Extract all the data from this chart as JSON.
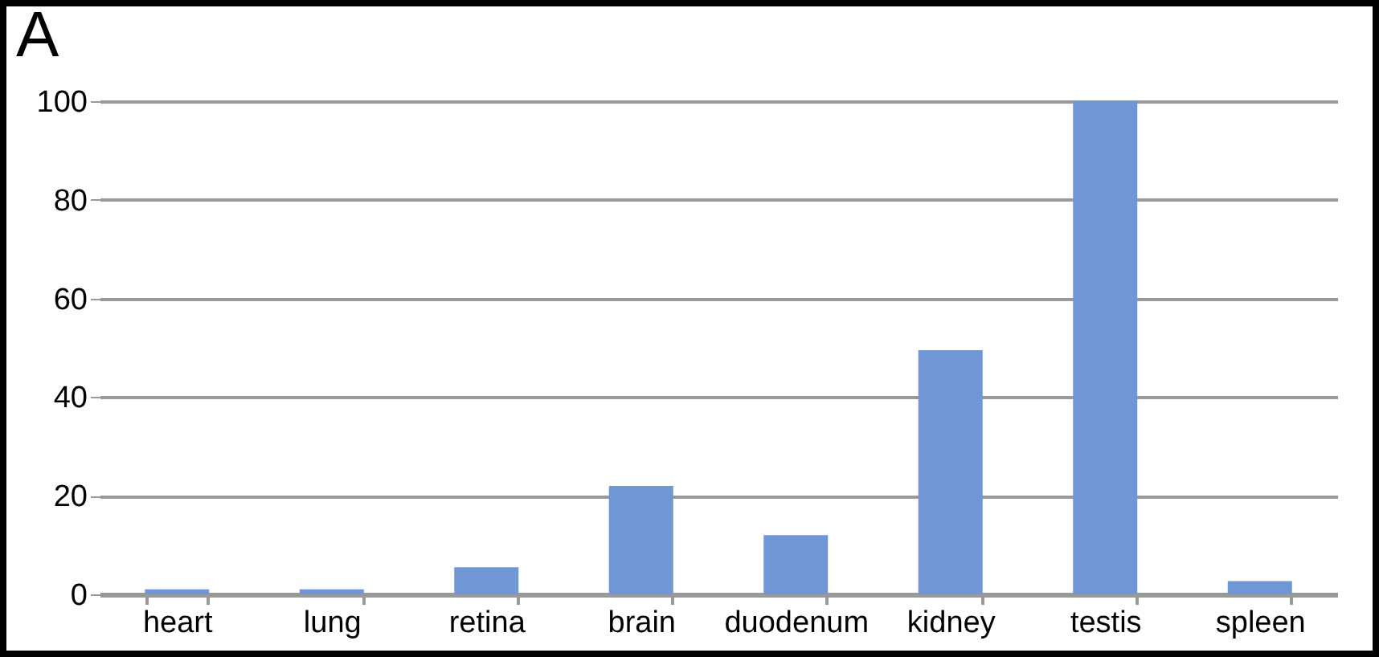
{
  "chart_data": {
    "type": "bar",
    "categories": [
      "heart",
      "lung",
      "retina",
      "brain",
      "duodenum",
      "kidney",
      "testis",
      "spleen"
    ],
    "values": [
      1,
      1,
      5.5,
      22,
      12,
      49.5,
      100,
      2.7
    ],
    "color": "#7096d6",
    "ylim": [
      0,
      100
    ],
    "yticks": [
      0,
      20,
      40,
      60,
      80,
      100
    ],
    "grid": "y",
    "annotations": [
      "A"
    ]
  }
}
